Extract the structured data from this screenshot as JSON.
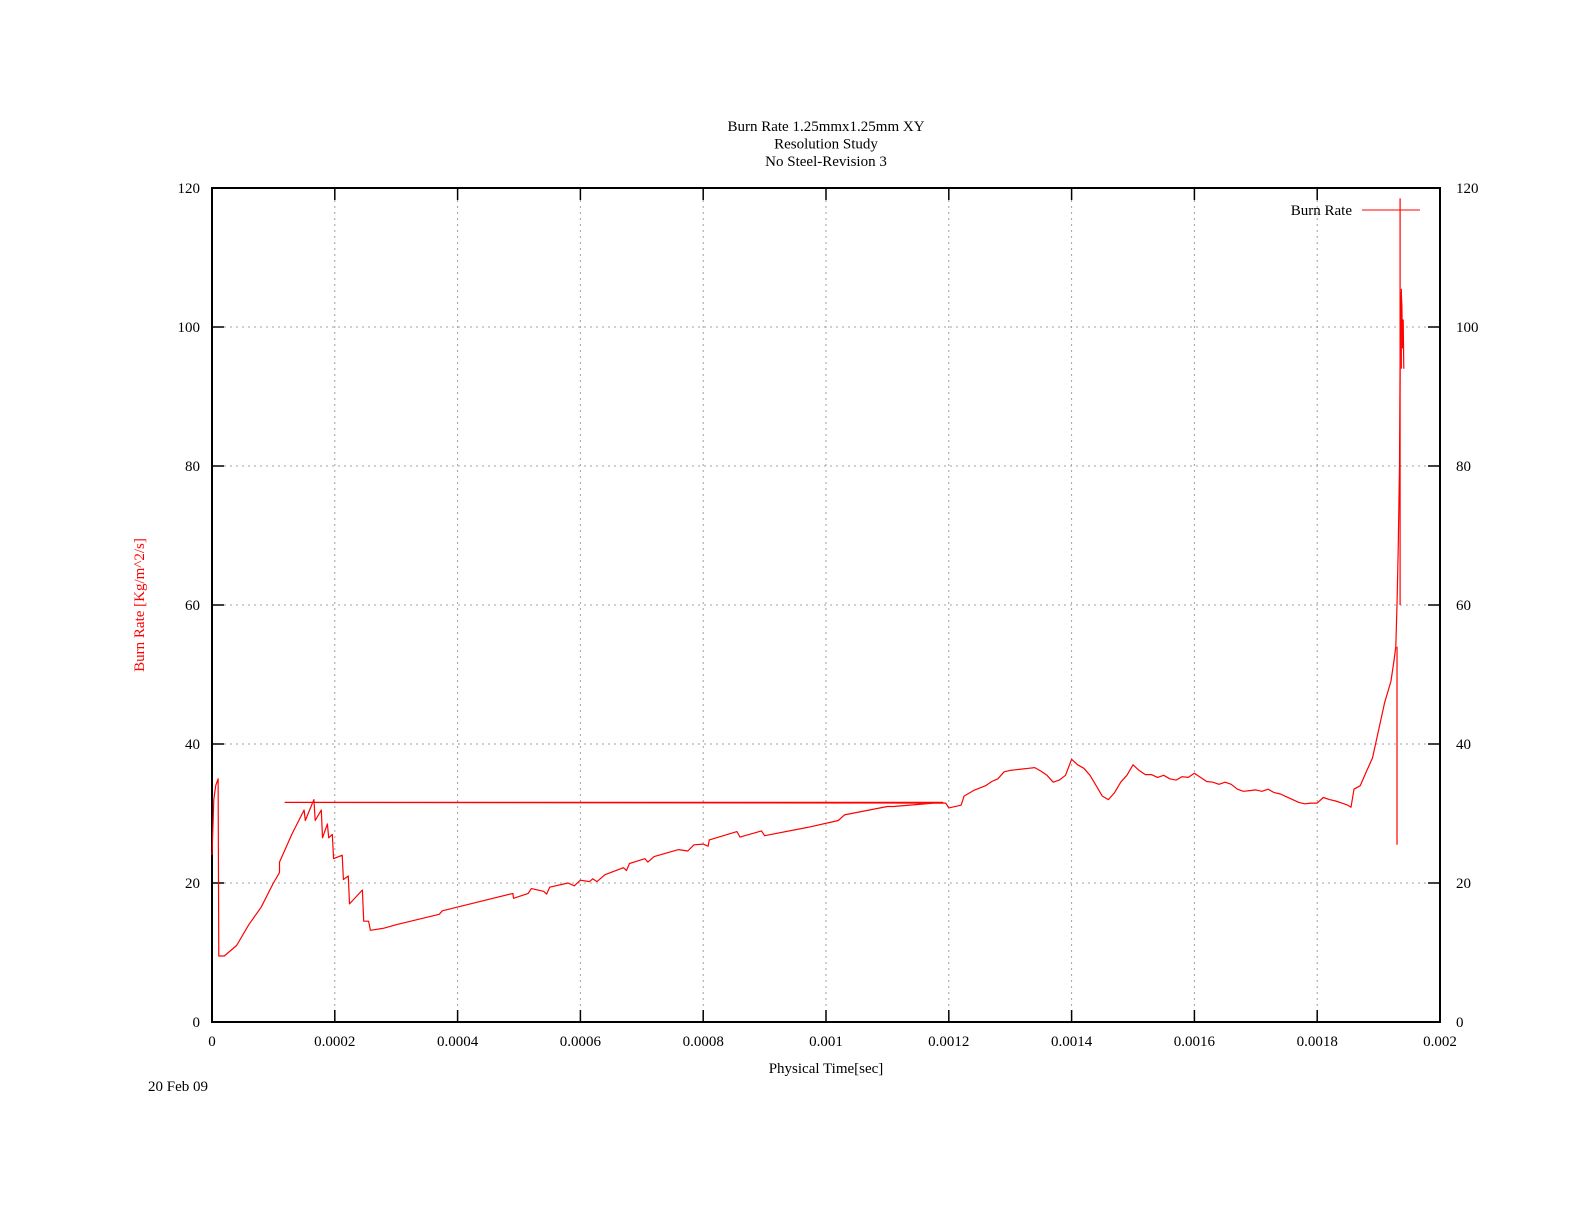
{
  "chart_data": {
    "type": "line",
    "title": [
      "Burn Rate 1.25mmx1.25mm XY",
      "Resolution Study",
      "No Steel-Revision 3"
    ],
    "xlabel": "Physical Time[sec]",
    "ylabel": "Burn Rate  [Kg/m^2/s]",
    "xlim": [
      0,
      0.002
    ],
    "ylim": [
      0,
      120
    ],
    "xticks": [
      "0",
      "0.0002",
      "0.0004",
      "0.0006",
      "0.0008",
      "0.001",
      "0.0012",
      "0.0014",
      "0.0016",
      "0.0018",
      "0.002"
    ],
    "yticks": [
      "0",
      "20",
      "40",
      "60",
      "80",
      "100",
      "120"
    ],
    "grid": true,
    "legend_position": "top-right",
    "series": [
      {
        "name": "Burn Rate",
        "color": "#ff0000",
        "points": [
          [
            0.0,
            24
          ],
          [
            3e-06,
            32
          ],
          [
            6e-06,
            34
          ],
          [
            1e-05,
            35
          ],
          [
            1.1e-05,
            9.5
          ],
          [
            2e-05,
            9.5
          ],
          [
            4e-05,
            11
          ],
          [
            5e-05,
            12.5
          ],
          [
            6e-05,
            14
          ],
          [
            8e-05,
            16.5
          ],
          [
            0.0001,
            20
          ],
          [
            0.00011,
            21.5
          ],
          [
            0.00011,
            23
          ],
          [
            0.00013,
            27
          ],
          [
            0.00015,
            30.5
          ],
          [
            0.000152,
            29
          ],
          [
            0.000166,
            32
          ],
          [
            0.000168,
            29
          ],
          [
            0.000178,
            30.5
          ],
          [
            0.00018,
            26.5
          ],
          [
            0.000188,
            28.5
          ],
          [
            0.00019,
            26.5
          ],
          [
            0.000196,
            27
          ],
          [
            0.000198,
            23.5
          ],
          [
            0.000212,
            24
          ],
          [
            0.000214,
            20.5
          ],
          [
            0.000222,
            21
          ],
          [
            0.000224,
            17
          ],
          [
            0.000245,
            19
          ],
          [
            0.000247,
            14.5
          ],
          [
            0.000255,
            14.5
          ],
          [
            0.000258,
            13.2
          ],
          [
            0.00028,
            13.5
          ],
          [
            0.0003,
            14
          ],
          [
            0.00037,
            15.5
          ],
          [
            0.000375,
            16
          ],
          [
            0.00049,
            18.5
          ],
          [
            0.000491,
            17.8
          ],
          [
            0.000515,
            18.5
          ],
          [
            0.00052,
            19.2
          ],
          [
            0.00054,
            18.8
          ],
          [
            0.000545,
            18.4
          ],
          [
            0.00055,
            19.4
          ],
          [
            0.00058,
            20
          ],
          [
            0.00059,
            19.6
          ],
          [
            0.0006,
            20.4
          ],
          [
            0.000615,
            20.2
          ],
          [
            0.00062,
            20.6
          ],
          [
            0.000627,
            20.2
          ],
          [
            0.00064,
            21.2
          ],
          [
            0.00067,
            22.2
          ],
          [
            0.000675,
            21.8
          ],
          [
            0.00068,
            22.8
          ],
          [
            0.000705,
            23.5
          ],
          [
            0.00071,
            23
          ],
          [
            0.00072,
            23.8
          ],
          [
            0.00076,
            24.8
          ],
          [
            0.000775,
            24.6
          ],
          [
            0.000785,
            25.5
          ],
          [
            0.0008,
            25.6
          ],
          [
            0.000808,
            25.3
          ],
          [
            0.00081,
            26.2
          ],
          [
            0.000855,
            27.4
          ],
          [
            0.00086,
            26.6
          ],
          [
            0.000895,
            27.5
          ],
          [
            0.0009,
            26.8
          ],
          [
            0.00097,
            28
          ],
          [
            0.00102,
            29
          ],
          [
            0.00103,
            29.8
          ],
          [
            0.0011,
            31
          ],
          [
            0.00111,
            31
          ],
          [
            0.00119,
            31.6
          ],
          [
            0.000119,
            31.6
          ],
          [
            0.001195,
            31.5
          ],
          [
            0.0012,
            30.8
          ],
          [
            0.00122,
            31.2
          ],
          [
            0.001225,
            32.5
          ],
          [
            0.00124,
            33.3
          ],
          [
            0.00126,
            34
          ],
          [
            0.00127,
            34.6
          ],
          [
            0.00128,
            35
          ],
          [
            0.00129,
            36
          ],
          [
            0.0013,
            36.2
          ],
          [
            0.00131,
            36.3
          ],
          [
            0.00132,
            36.4
          ],
          [
            0.00133,
            36.5
          ],
          [
            0.00134,
            36.6
          ],
          [
            0.00135,
            36.1
          ],
          [
            0.00136,
            35.5
          ],
          [
            0.00137,
            34.5
          ],
          [
            0.00138,
            34.8
          ],
          [
            0.00139,
            35.5
          ],
          [
            0.0014,
            37.8
          ],
          [
            0.00141,
            37
          ],
          [
            0.00142,
            36.5
          ],
          [
            0.00143,
            35.5
          ],
          [
            0.00144,
            34
          ],
          [
            0.00145,
            32.5
          ],
          [
            0.00146,
            32
          ],
          [
            0.00147,
            33
          ],
          [
            0.00148,
            34.5
          ],
          [
            0.00149,
            35.5
          ],
          [
            0.0015,
            37
          ],
          [
            0.00151,
            36.2
          ],
          [
            0.00152,
            35.6
          ],
          [
            0.00153,
            35.6
          ],
          [
            0.00154,
            35.2
          ],
          [
            0.00155,
            35.5
          ],
          [
            0.00156,
            35
          ],
          [
            0.00157,
            34.8
          ],
          [
            0.00158,
            35.3
          ],
          [
            0.00159,
            35.2
          ],
          [
            0.0016,
            35.8
          ],
          [
            0.00161,
            35.2
          ],
          [
            0.00162,
            34.6
          ],
          [
            0.00163,
            34.5
          ],
          [
            0.00164,
            34.2
          ],
          [
            0.00165,
            34.5
          ],
          [
            0.00166,
            34.2
          ],
          [
            0.00167,
            33.5
          ],
          [
            0.00168,
            33.2
          ],
          [
            0.00169,
            33.3
          ],
          [
            0.0017,
            33.4
          ],
          [
            0.00171,
            33.2
          ],
          [
            0.00172,
            33.5
          ],
          [
            0.00173,
            33
          ],
          [
            0.00174,
            32.8
          ],
          [
            0.00175,
            32.4
          ],
          [
            0.00176,
            32
          ],
          [
            0.00177,
            31.6
          ],
          [
            0.00178,
            31.4
          ],
          [
            0.00179,
            31.5
          ],
          [
            0.0018,
            31.5
          ],
          [
            0.00181,
            32.3
          ],
          [
            0.00182,
            32
          ],
          [
            0.00183,
            31.8
          ],
          [
            0.00184,
            31.5
          ],
          [
            0.00185,
            31.2
          ],
          [
            0.001855,
            30.9
          ],
          [
            0.00186,
            33.5
          ],
          [
            0.00187,
            34
          ],
          [
            0.00188,
            36
          ],
          [
            0.00189,
            38
          ],
          [
            0.0019,
            42
          ],
          [
            0.00191,
            46
          ],
          [
            0.00192,
            49
          ],
          [
            0.001925,
            52
          ],
          [
            0.001928,
            54
          ],
          [
            0.00193,
            60
          ],
          [
            0.001932,
            68
          ],
          [
            0.001934,
            80
          ],
          [
            0.001935,
            95
          ],
          [
            0.001936,
            102
          ],
          [
            0.001937,
            105
          ],
          [
            0.001938,
            103
          ],
          [
            0.001939,
            97
          ],
          [
            0.00194,
            101
          ],
          [
            0.001941,
            94
          ]
        ]
      }
    ],
    "spikes": [
      {
        "x": 0.001935,
        "y_top": 118.5,
        "y_bottom": 60
      },
      {
        "x": 0.00193,
        "y_top": 54,
        "y_bottom": 25.5
      },
      {
        "x": 0.001937,
        "y_top": 105.5,
        "y_bottom": 94
      }
    ]
  },
  "footer": {
    "date": "20 Feb 09"
  }
}
